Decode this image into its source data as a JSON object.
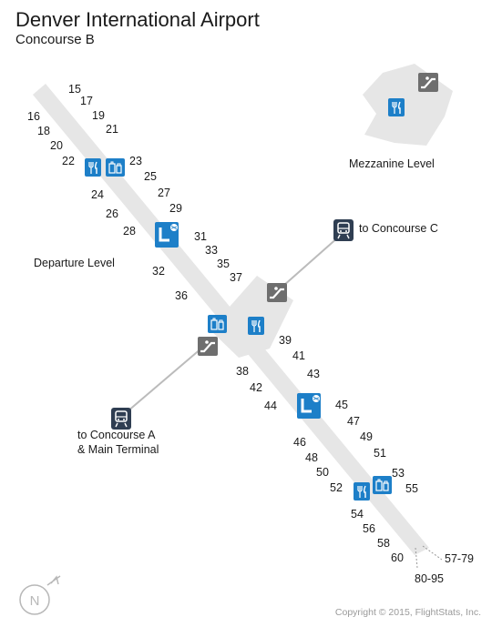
{
  "header": {
    "title": "Denver International Airport",
    "subtitle": "Concourse B"
  },
  "labels": {
    "departure_level": "Departure Level",
    "mezzanine_level": "Mezzanine Level",
    "to_concourse_c": "to Concourse C",
    "to_concourse_a_line1": "to Concourse A",
    "to_concourse_a_line2": "& Main Terminal",
    "gates_57_79": "57-79",
    "gates_80_95": "80-95"
  },
  "gates": [
    "15",
    "16",
    "17",
    "18",
    "19",
    "20",
    "21",
    "22",
    "23",
    "24",
    "25",
    "26",
    "27",
    "28",
    "29",
    "31",
    "32",
    "33",
    "35",
    "36",
    "37",
    "38",
    "39",
    "41",
    "42",
    "43",
    "44",
    "45",
    "46",
    "47",
    "48",
    "49",
    "50",
    "51",
    "52",
    "53",
    "54",
    "55",
    "56",
    "58",
    "60"
  ],
  "compass": {
    "letter": "N"
  },
  "footer": {
    "copyright": "Copyright © 2015, FlightStats, Inc."
  },
  "colors": {
    "floor": "#e6e6e6",
    "amenity_blue": "#1d7fc8",
    "escalator_gray": "#6e6e6e",
    "train_dark": "#2f3e52"
  }
}
